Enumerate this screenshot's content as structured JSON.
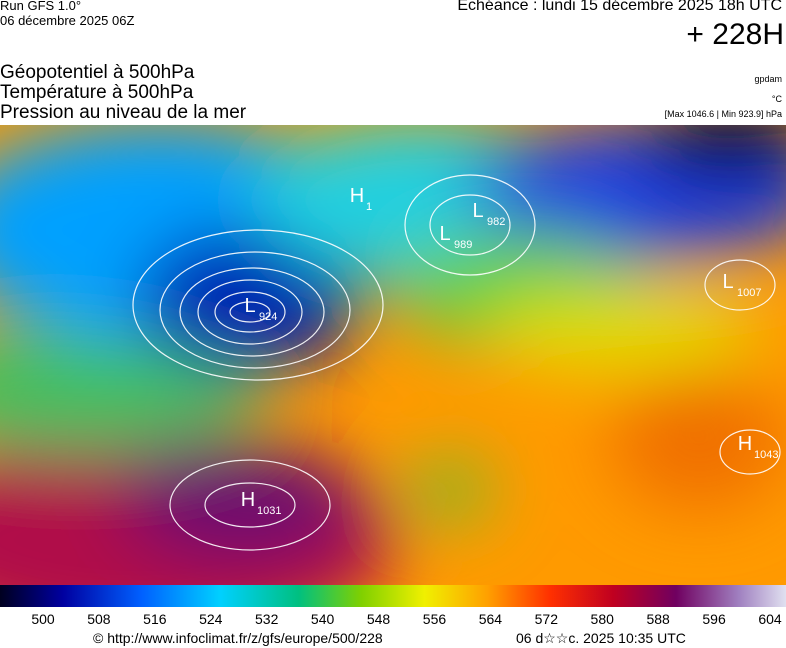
{
  "header": {
    "run": "Run GFS 1.0°",
    "run_date": "06 décembre 2025 06Z",
    "echeance": "Echéance : lundi 15 décembre 2025 18h UTC",
    "lead": "+ 228H"
  },
  "titles": [
    "Géopotentiel à 500hPa",
    "Température à 500hPa",
    "Pression au niveau de la mer"
  ],
  "units": {
    "geopotential": "gpdam",
    "temperature": "°C",
    "pressure_range": "[Max 1046.6 | Min 923.9] hPa"
  },
  "centers": [
    {
      "type": "L",
      "value": "924"
    },
    {
      "type": "L",
      "value": "989"
    },
    {
      "type": "L",
      "value": "982"
    },
    {
      "type": "L",
      "value": "1007"
    },
    {
      "type": "H",
      "value": "1031"
    },
    {
      "type": "H",
      "value": "1043"
    },
    {
      "type": "H",
      "value": "1"
    }
  ],
  "colorbar": {
    "ticks": [
      500,
      508,
      516,
      524,
      532,
      540,
      548,
      556,
      564,
      572,
      580,
      588,
      596,
      604
    ]
  },
  "footer": {
    "url": "© http://www.infoclimat.fr/z/gfs/europe/500/228",
    "generated": "06 d☆☆c. 2025 10:35 UTC"
  }
}
